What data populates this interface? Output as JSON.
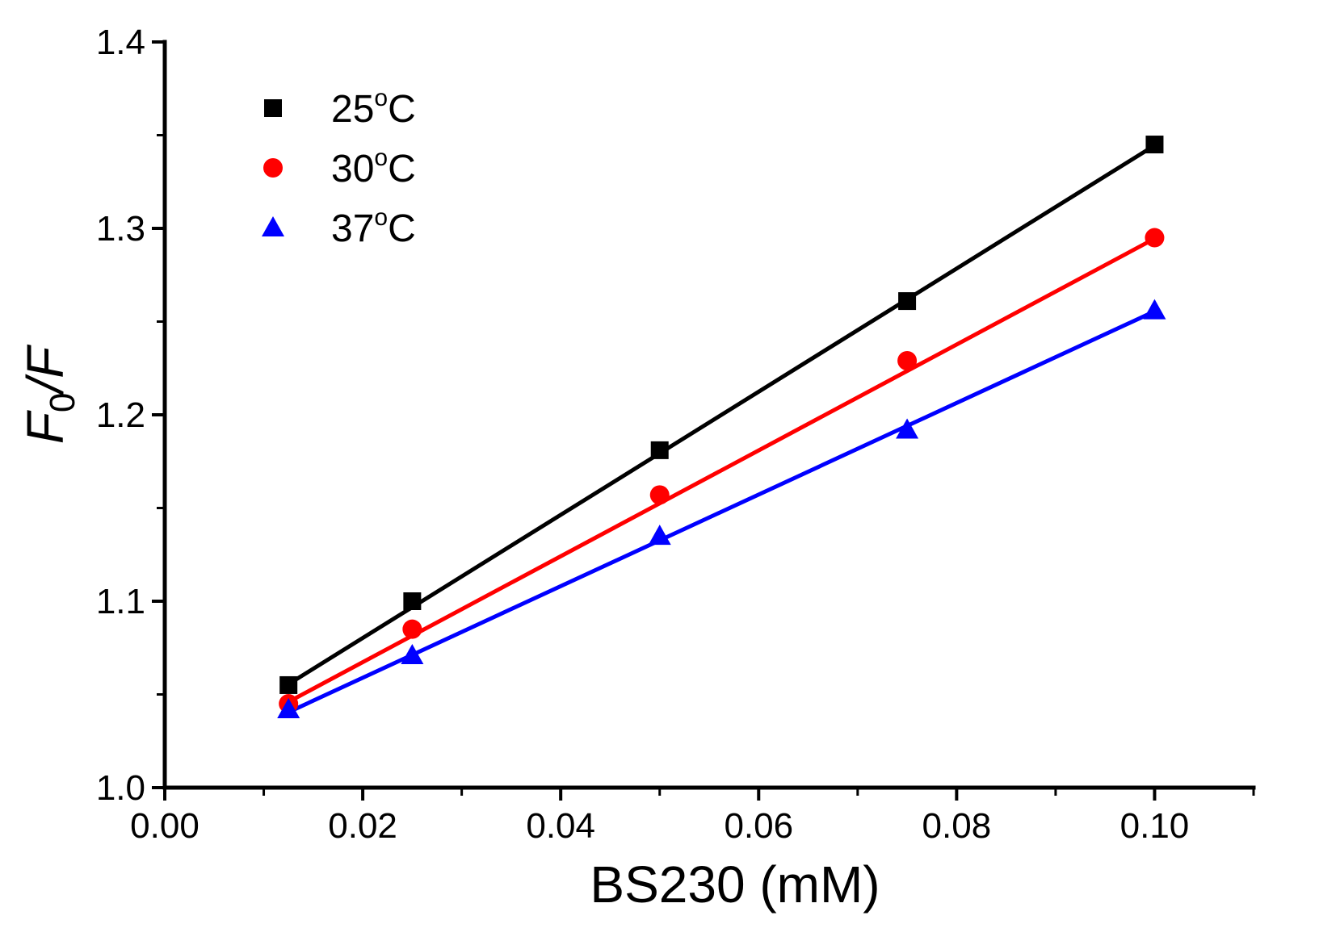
{
  "chart_data": {
    "type": "scatter",
    "title": "",
    "xlabel": "BS230 (mM)",
    "ylabel": {
      "main": "F",
      "subscript": "0",
      "suffix": "/F"
    },
    "xlim": [
      0.0,
      0.11
    ],
    "ylim": [
      1.0,
      1.4
    ],
    "grid": false,
    "legend_position": "top-left",
    "x_ticks": [
      0.0,
      0.02,
      0.04,
      0.06,
      0.08,
      0.1
    ],
    "x_tick_labels": [
      "0.00",
      "0.02",
      "0.04",
      "0.06",
      "0.08",
      "0.10"
    ],
    "y_ticks": [
      1.0,
      1.1,
      1.2,
      1.3,
      1.4
    ],
    "y_tick_labels": [
      "1.0",
      "1.1",
      "1.2",
      "1.3",
      "1.4"
    ],
    "x": [
      0.0125,
      0.025,
      0.05,
      0.075,
      0.1
    ],
    "series": [
      {
        "name": "25°C",
        "label_base": "25",
        "label_sup": "o",
        "label_unit": "C",
        "marker": "square",
        "color": "#000000",
        "values": [
          1.055,
          1.1,
          1.181,
          1.261,
          1.345
        ],
        "fit": [
          1.0555,
          1.3445
        ]
      },
      {
        "name": "30°C",
        "label_base": "30",
        "label_sup": "o",
        "label_unit": "C",
        "marker": "circle",
        "color": "#ff0000",
        "values": [
          1.045,
          1.085,
          1.157,
          1.229,
          1.295
        ],
        "fit": [
          1.046,
          1.2945
        ]
      },
      {
        "name": "37°C",
        "label_base": "37",
        "label_sup": "o",
        "label_unit": "C",
        "marker": "triangle",
        "color": "#0000ff",
        "values": [
          1.042,
          1.071,
          1.135,
          1.192,
          1.256
        ],
        "fit": [
          1.0405,
          1.2555
        ]
      }
    ]
  }
}
